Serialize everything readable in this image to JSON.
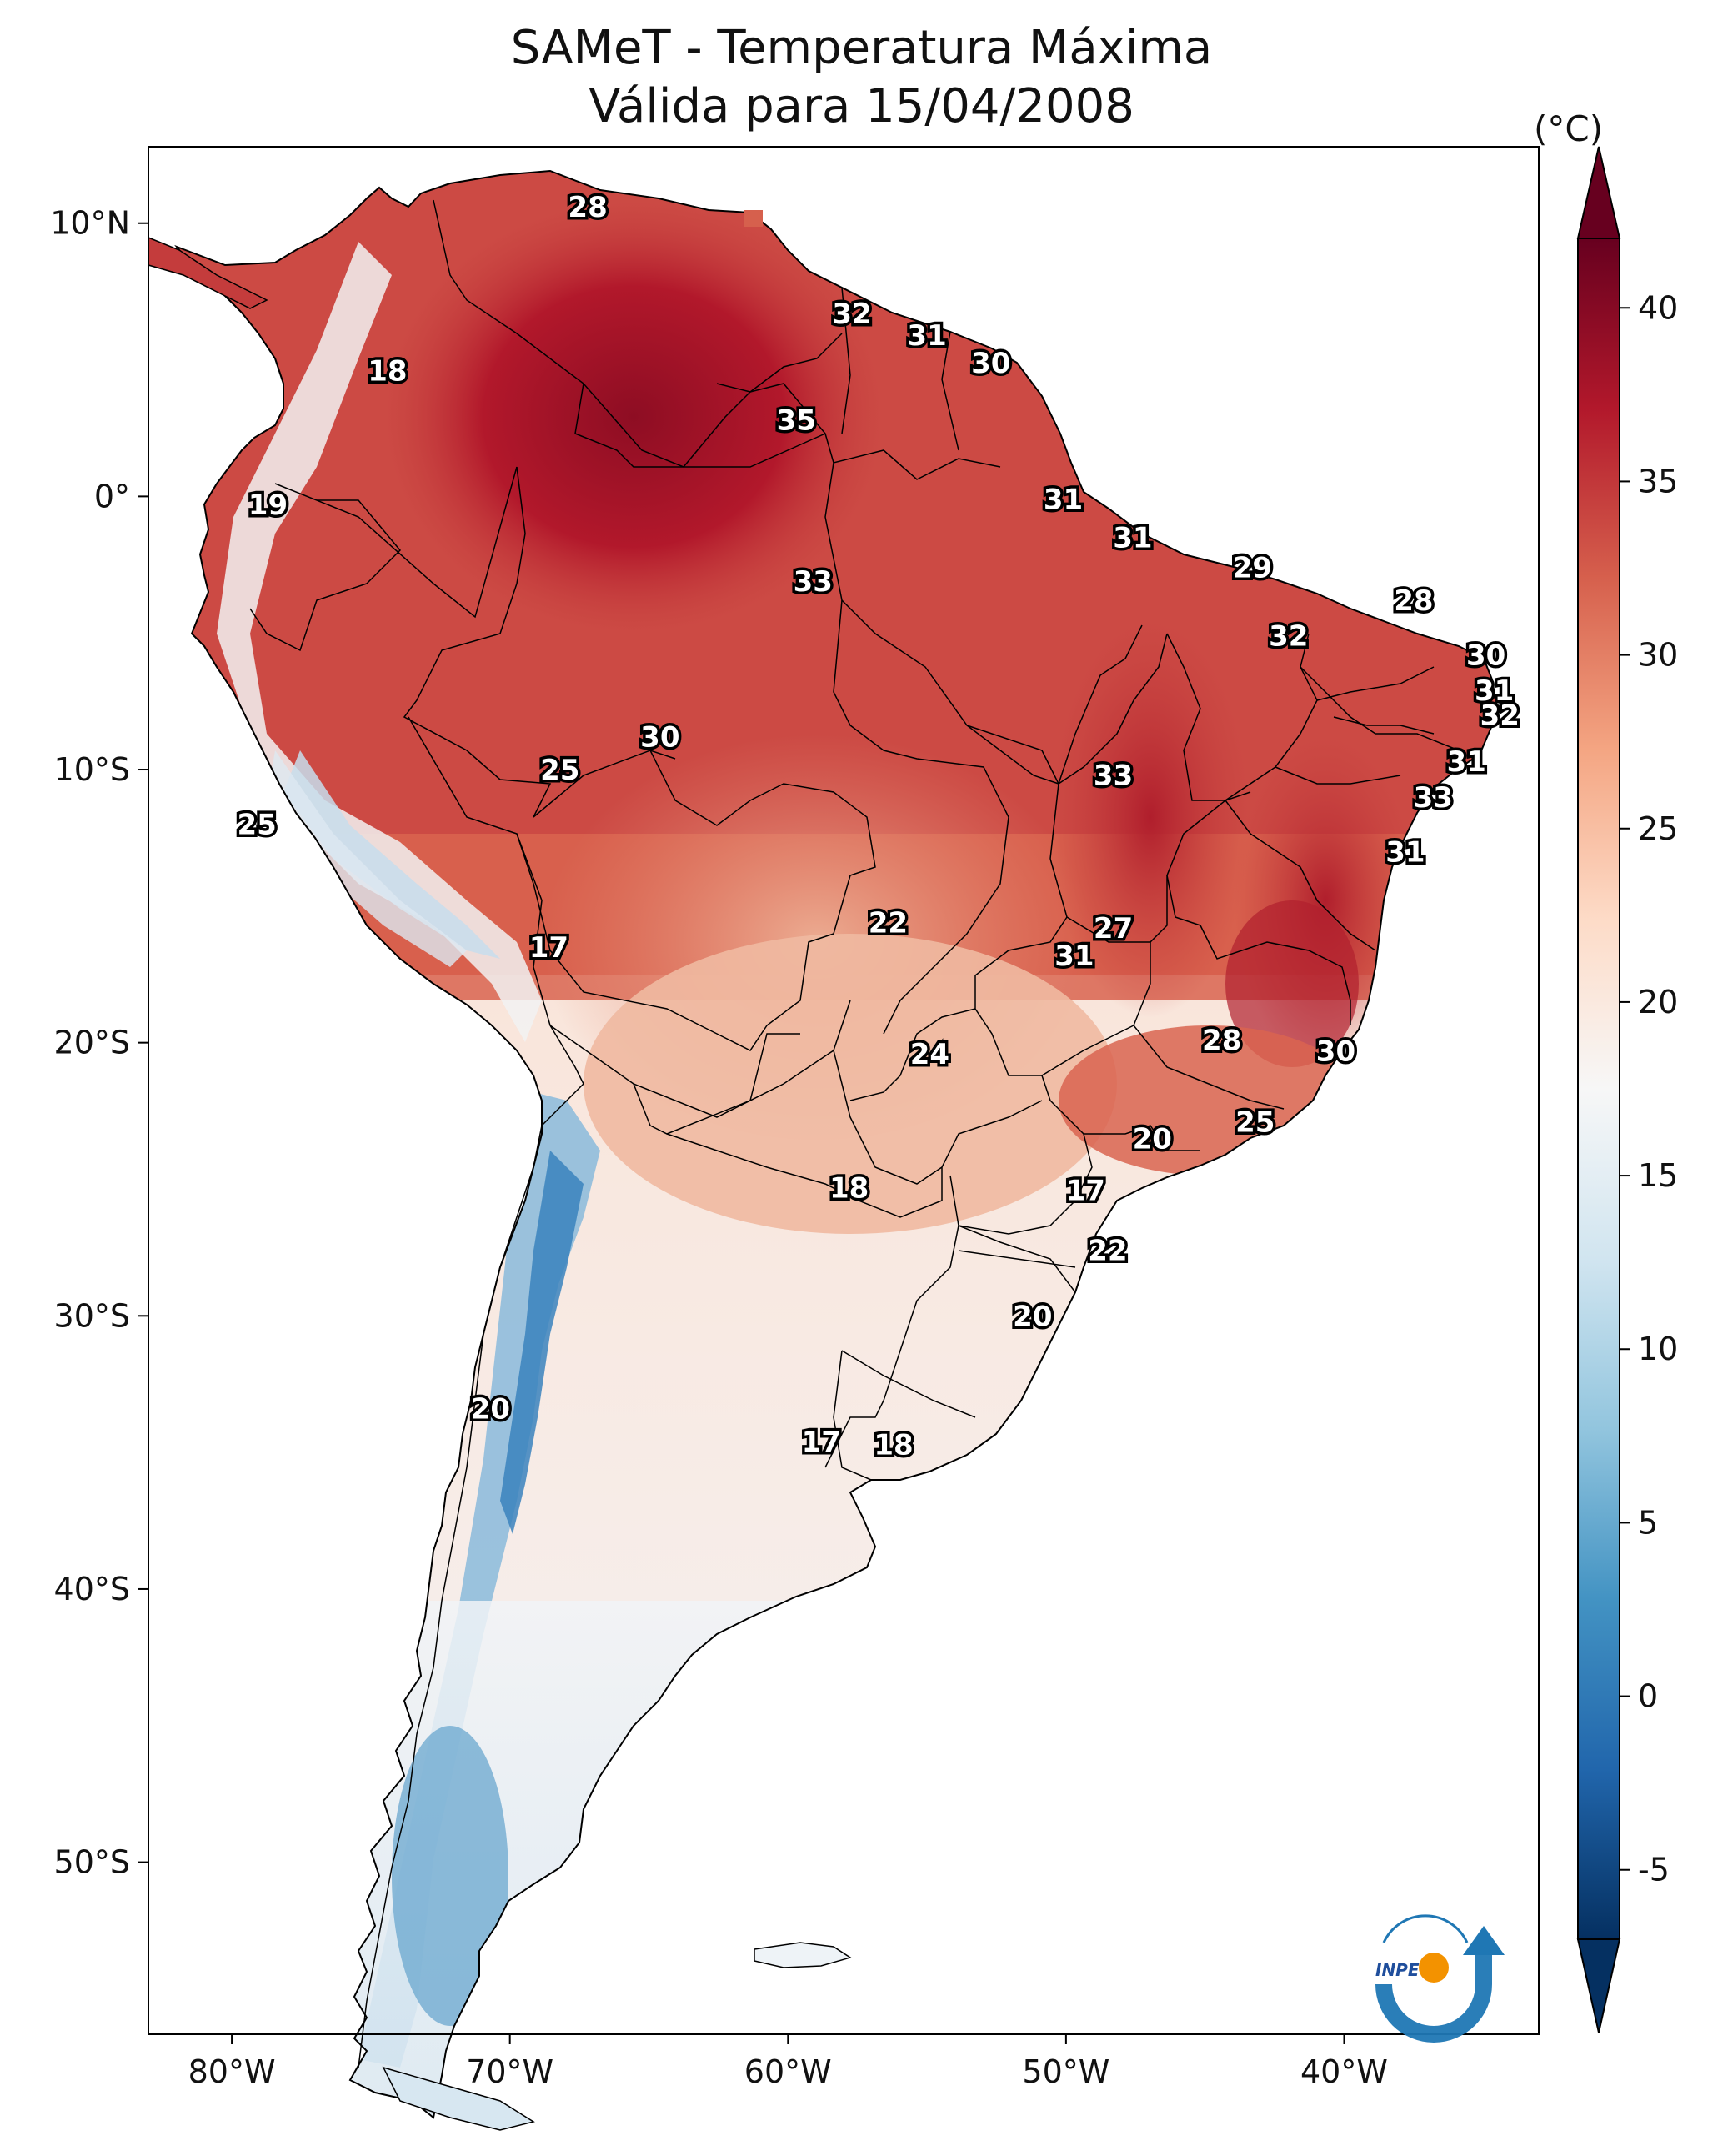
{
  "title_line1": "SAMeT - Temperatura Máxima",
  "title_line2": "Válida para 15/04/2008",
  "colorbar": {
    "unit": "(°C)",
    "min": -7,
    "max": 42,
    "ticks": [
      "40",
      "35",
      "30",
      "25",
      "20",
      "15",
      "10",
      "5",
      "0",
      "-5"
    ],
    "tick_values": [
      40,
      35,
      30,
      25,
      20,
      15,
      10,
      5,
      0,
      -5
    ],
    "colors": [
      "#053061",
      "#2166ac",
      "#4393c3",
      "#92c5de",
      "#d1e5f0",
      "#f7f7f7",
      "#fddbc7",
      "#f4a582",
      "#d6604d",
      "#b2182b",
      "#67001f"
    ]
  },
  "axes": {
    "lon_labels": [
      "80°W",
      "70°W",
      "60°W",
      "50°W",
      "40°W"
    ],
    "lon_values": [
      -80,
      -70,
      -60,
      -50,
      -40
    ],
    "lat_labels": [
      "10°N",
      "0°",
      "10°S",
      "20°S",
      "30°S",
      "40°S",
      "50°S"
    ],
    "lat_values": [
      10,
      0,
      -10,
      -20,
      -30,
      -40,
      -50
    ],
    "lon_range": [
      -83,
      -33
    ],
    "lat_range": [
      12.8,
      -56.3
    ]
  },
  "station_labels": [
    {
      "text": "28",
      "lon": -67.2,
      "lat": 10.6
    },
    {
      "text": "32",
      "lon": -57.7,
      "lat": 6.7
    },
    {
      "text": "31",
      "lon": -55.0,
      "lat": 5.9
    },
    {
      "text": "30",
      "lon": -52.7,
      "lat": 4.9
    },
    {
      "text": "18",
      "lon": -74.4,
      "lat": 4.6
    },
    {
      "text": "35",
      "lon": -59.7,
      "lat": 2.8
    },
    {
      "text": "19",
      "lon": -78.7,
      "lat": -0.3
    },
    {
      "text": "31",
      "lon": -50.1,
      "lat": -0.1
    },
    {
      "text": "31",
      "lon": -47.6,
      "lat": -1.5
    },
    {
      "text": "29",
      "lon": -43.3,
      "lat": -2.6
    },
    {
      "text": "33",
      "lon": -59.1,
      "lat": -3.1
    },
    {
      "text": "28",
      "lon": -37.5,
      "lat": -3.8
    },
    {
      "text": "32",
      "lon": -42.0,
      "lat": -5.1
    },
    {
      "text": "30",
      "lon": -34.9,
      "lat": -5.8
    },
    {
      "text": "31",
      "lon": -34.6,
      "lat": -7.1
    },
    {
      "text": "32",
      "lon": -34.4,
      "lat": -8.0
    },
    {
      "text": "30",
      "lon": -64.6,
      "lat": -8.8
    },
    {
      "text": "25",
      "lon": -68.2,
      "lat": -10.0
    },
    {
      "text": "31",
      "lon": -35.6,
      "lat": -9.7
    },
    {
      "text": "33",
      "lon": -48.3,
      "lat": -10.2
    },
    {
      "text": "33",
      "lon": -36.8,
      "lat": -11.0
    },
    {
      "text": "25",
      "lon": -79.1,
      "lat": -12.0
    },
    {
      "text": "31",
      "lon": -37.8,
      "lat": -13.0
    },
    {
      "text": "22",
      "lon": -56.4,
      "lat": -15.6
    },
    {
      "text": "27",
      "lon": -48.3,
      "lat": -15.8
    },
    {
      "text": "17",
      "lon": -68.6,
      "lat": -16.5
    },
    {
      "text": "31",
      "lon": -49.7,
      "lat": -16.8
    },
    {
      "text": "28",
      "lon": -44.4,
      "lat": -19.9
    },
    {
      "text": "30",
      "lon": -40.3,
      "lat": -20.3
    },
    {
      "text": "24",
      "lon": -54.9,
      "lat": -20.4
    },
    {
      "text": "25",
      "lon": -43.2,
      "lat": -22.9
    },
    {
      "text": "20",
      "lon": -46.9,
      "lat": -23.5
    },
    {
      "text": "18",
      "lon": -57.8,
      "lat": -25.3
    },
    {
      "text": "17",
      "lon": -49.3,
      "lat": -25.4
    },
    {
      "text": "22",
      "lon": -48.5,
      "lat": -27.6
    },
    {
      "text": "20",
      "lon": -51.2,
      "lat": -30.0
    },
    {
      "text": "20",
      "lon": -70.7,
      "lat": -33.4
    },
    {
      "text": "17",
      "lon": -58.8,
      "lat": -34.6
    },
    {
      "text": "18",
      "lon": -56.2,
      "lat": -34.7
    }
  ],
  "logo": {
    "text": "INPE"
  }
}
